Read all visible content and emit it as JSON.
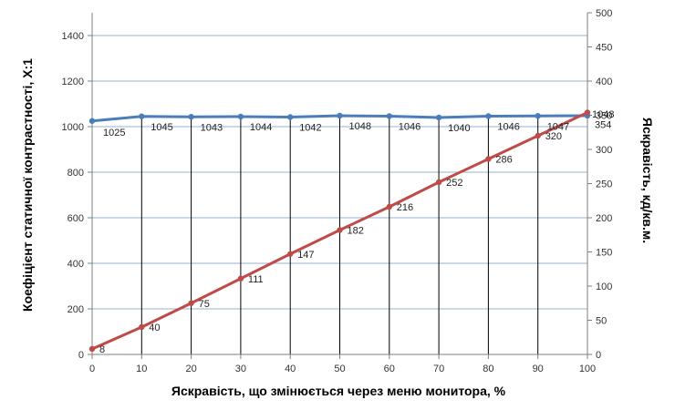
{
  "chart_data": {
    "type": "line",
    "title": "",
    "xlabel": "Яскравість, що змінюється через меню монитора, %",
    "ylabel": "Коефіцієнт статичної контрастності, Х:1",
    "y2label": "Яскравість, кд/кв.м.",
    "x": [
      0,
      10,
      20,
      30,
      40,
      50,
      60,
      70,
      80,
      90,
      100
    ],
    "xlim": [
      0,
      100
    ],
    "ylim": [
      0,
      1500
    ],
    "y2lim": [
      0,
      500
    ],
    "yticks": [
      0,
      200,
      400,
      600,
      800,
      1000,
      1200,
      1400
    ],
    "y2ticks": [
      0,
      50,
      100,
      150,
      200,
      250,
      300,
      350,
      400,
      450,
      500
    ],
    "grid": true,
    "drop_lines": true,
    "legend": "none",
    "series": [
      {
        "axis": "left",
        "color": "#4a7ebb",
        "values": [
          1025,
          1045,
          1043,
          1044,
          1042,
          1048,
          1046,
          1040,
          1046,
          1047,
          1048
        ]
      },
      {
        "axis": "right",
        "color": "#be4b48",
        "values": [
          8,
          40,
          75,
          111,
          147,
          182,
          216,
          252,
          286,
          320,
          354
        ]
      }
    ]
  }
}
